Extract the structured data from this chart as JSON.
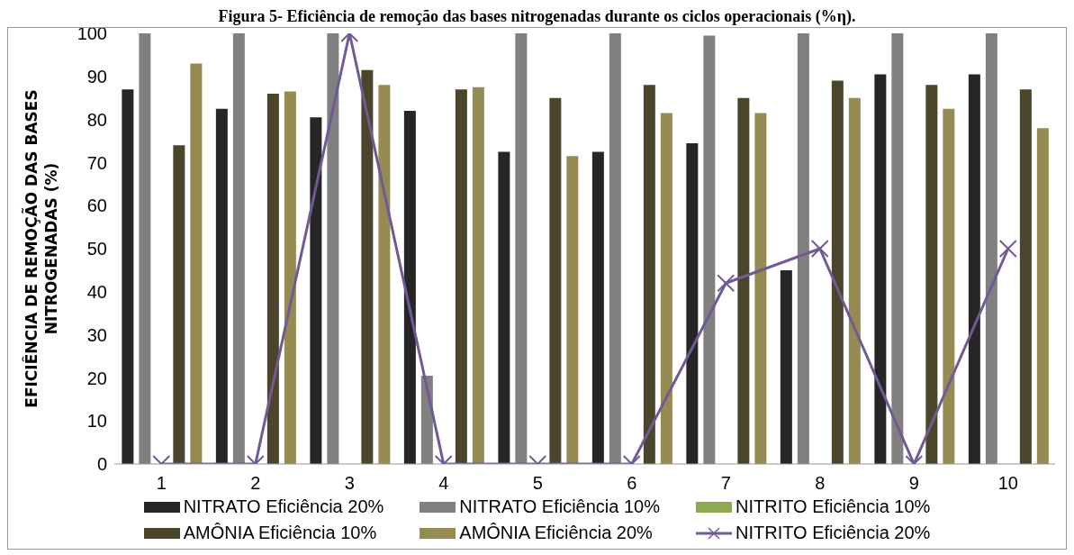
{
  "chart_data": {
    "type": "bar",
    "title": "Figura 5- Eficiência de remoção das bases nitrogenadas durante os ciclos operacionais (%η).",
    "ylabel": "EFICIÊNCIA DE REMOÇÃO DAS BASES NITROGENADAS (%)",
    "categories": [
      "1",
      "2",
      "3",
      "4",
      "5",
      "6",
      "7",
      "8",
      "9",
      "10"
    ],
    "series": [
      {
        "name": "NITRATO Eficiência 20%",
        "color": "#262626",
        "values": [
          87,
          82.5,
          80.5,
          82,
          72.5,
          72.5,
          74.5,
          45,
          90.5,
          90.5
        ]
      },
      {
        "name": "NITRATO Eficiência 10%",
        "color": "#808080",
        "values": [
          100,
          100,
          100,
          20.5,
          100,
          100,
          99.5,
          100,
          100,
          100
        ]
      },
      {
        "name": "NITRITO Eficiência 10%",
        "color": "#8faa55",
        "values": [
          0,
          0,
          0,
          0,
          0,
          0,
          0,
          0,
          0,
          0
        ]
      },
      {
        "name": "AMÔNIA Eficiência 10%",
        "color": "#4b452b",
        "values": [
          74,
          86,
          91.5,
          87,
          85,
          88,
          85,
          89,
          88,
          87
        ]
      },
      {
        "name": "AMÔNIA Eficiência 20%",
        "color": "#968b53",
        "values": [
          93,
          86.5,
          88,
          87.5,
          71.5,
          81.5,
          81.5,
          85,
          82.5,
          78
        ]
      },
      {
        "name": "NITRITO Eficiência 20%",
        "type": "line",
        "marker": "cross",
        "color": "#715a93",
        "values": [
          0,
          0,
          100,
          0,
          0,
          0,
          42,
          50,
          0,
          50
        ]
      }
    ],
    "ylim": [
      0,
      100
    ],
    "yticks": [
      0,
      10,
      20,
      30,
      40,
      50,
      60,
      70,
      80,
      90,
      100
    ],
    "grid": false,
    "legend": "bottom"
  }
}
